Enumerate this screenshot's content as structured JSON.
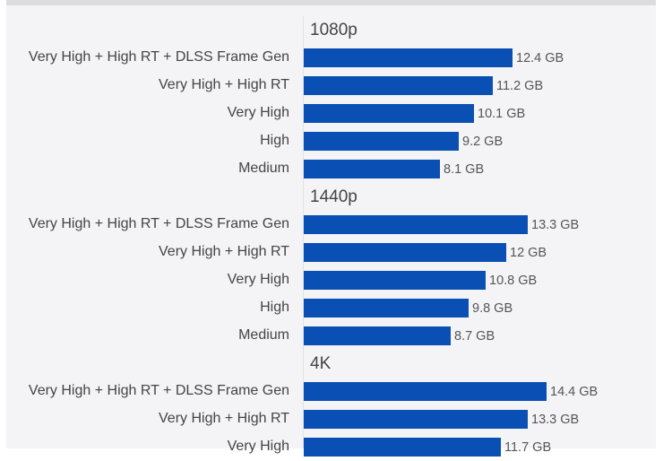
{
  "chart_data": {
    "type": "bar",
    "orientation": "horizontal",
    "title": "",
    "xlabel": "",
    "ylabel": "",
    "unit": "GB",
    "grid": false,
    "legend": null,
    "bar_color": "#0a4fb4",
    "groups": [
      {
        "name": "1080p",
        "categories": [
          "Very High + High RT + DLSS Frame Gen",
          "Very High + High RT",
          "Very High",
          "High",
          "Medium"
        ],
        "values": [
          12.4,
          11.2,
          10.1,
          9.2,
          8.1
        ],
        "labels": [
          "12.4 GB",
          "11.2 GB",
          "10.1 GB",
          "9.2 GB",
          "8.1 GB"
        ]
      },
      {
        "name": "1440p",
        "categories": [
          "Very High + High RT + DLSS Frame Gen",
          "Very High + High RT",
          "Very High",
          "High",
          "Medium"
        ],
        "values": [
          13.3,
          12,
          10.8,
          9.8,
          8.7
        ],
        "labels": [
          "13.3 GB",
          "12 GB",
          "10.8 GB",
          "9.8 GB",
          "8.7 GB"
        ]
      },
      {
        "name": "4K",
        "categories": [
          "Very High + High RT + DLSS Frame Gen",
          "Very High + High RT",
          "Very High"
        ],
        "values": [
          14.4,
          13.3,
          11.7
        ],
        "labels": [
          "14.4 GB",
          "13.3 GB",
          "11.7 GB"
        ]
      }
    ]
  }
}
